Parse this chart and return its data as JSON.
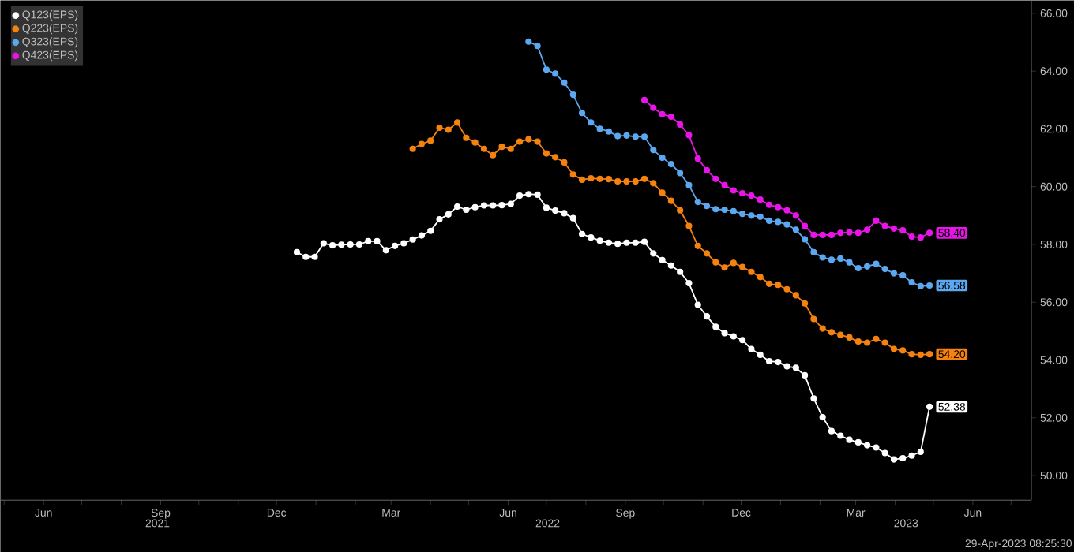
{
  "chart_data": {
    "type": "line",
    "marker": "circle",
    "legend": "top left",
    "x": [
      "2021-12-17",
      "2021-12-24",
      "2021-12-31",
      "2022-01-07",
      "2022-01-14",
      "2022-01-21",
      "2022-01-28",
      "2022-02-04",
      "2022-02-11",
      "2022-02-18",
      "2022-02-25",
      "2022-03-04",
      "2022-03-11",
      "2022-03-18",
      "2022-03-25",
      "2022-04-01",
      "2022-04-08",
      "2022-04-15",
      "2022-04-22",
      "2022-04-29",
      "2022-05-06",
      "2022-05-13",
      "2022-05-20",
      "2022-05-27",
      "2022-06-03",
      "2022-06-10",
      "2022-06-17",
      "2022-06-24",
      "2022-07-01",
      "2022-07-08",
      "2022-07-15",
      "2022-07-22",
      "2022-07-29",
      "2022-08-05",
      "2022-08-12",
      "2022-08-19",
      "2022-08-26",
      "2022-09-02",
      "2022-09-09",
      "2022-09-16",
      "2022-09-23",
      "2022-09-30",
      "2022-10-07",
      "2022-10-14",
      "2022-10-21",
      "2022-10-28",
      "2022-11-04",
      "2022-11-11",
      "2022-11-18",
      "2022-11-25",
      "2022-12-02",
      "2022-12-09",
      "2022-12-16",
      "2022-12-23",
      "2022-12-30",
      "2023-01-06",
      "2023-01-13",
      "2023-01-20",
      "2023-01-27",
      "2023-02-03",
      "2023-02-10",
      "2023-02-17",
      "2023-02-24",
      "2023-03-03",
      "2023-03-10",
      "2023-03-17",
      "2023-03-24",
      "2023-03-31",
      "2023-04-07",
      "2023-04-14",
      "2023-04-21",
      "2023-04-28"
    ],
    "series": [
      {
        "name": "Q123(EPS)",
        "color": "#ffffff",
        "values": [
          57.73,
          57.57,
          57.57,
          58.04,
          57.97,
          57.99,
          58.0,
          58.0,
          58.11,
          58.11,
          57.8,
          57.95,
          58.04,
          58.17,
          58.31,
          58.47,
          58.87,
          59.04,
          59.31,
          59.2,
          59.29,
          59.35,
          59.35,
          59.36,
          59.4,
          59.69,
          59.74,
          59.72,
          59.27,
          59.17,
          59.08,
          58.91,
          58.36,
          58.24,
          58.13,
          58.06,
          58.02,
          58.06,
          58.06,
          58.09,
          57.69,
          57.46,
          57.27,
          57.05,
          56.66,
          55.91,
          55.51,
          55.15,
          54.93,
          54.82,
          54.69,
          54.38,
          54.18,
          53.96,
          53.93,
          53.78,
          53.73,
          53.47,
          52.67,
          52.02,
          51.54,
          51.38,
          51.24,
          51.15,
          51.05,
          50.97,
          50.78,
          50.56,
          50.6,
          50.69,
          50.82,
          52.38
        ],
        "value_labels": [
          null,
          null,
          null,
          null,
          null,
          null,
          null,
          null,
          null,
          null,
          null,
          null,
          null,
          null,
          null,
          null,
          null,
          null,
          null,
          null,
          null,
          null,
          null,
          null,
          null,
          null,
          null,
          null,
          null,
          null,
          null,
          null,
          null,
          null,
          null,
          null,
          null,
          null,
          null,
          null,
          null,
          null,
          null,
          null,
          null,
          null,
          null,
          null,
          null,
          null,
          null,
          null,
          null,
          null,
          null,
          null,
          null,
          null,
          null,
          null,
          null,
          null,
          null,
          null,
          null,
          null,
          null,
          null,
          null,
          null,
          null,
          "52.38"
        ]
      },
      {
        "name": "Q223(EPS)",
        "color": "#f5820f",
        "values": [
          null,
          null,
          null,
          null,
          null,
          null,
          null,
          null,
          null,
          null,
          null,
          null,
          null,
          61.31,
          61.48,
          61.59,
          62.04,
          61.97,
          62.22,
          61.69,
          61.53,
          61.31,
          61.09,
          61.38,
          61.31,
          61.56,
          61.64,
          61.56,
          61.15,
          61.02,
          60.84,
          60.42,
          60.24,
          60.29,
          60.27,
          60.26,
          60.18,
          60.18,
          60.18,
          60.27,
          60.12,
          59.79,
          59.51,
          59.18,
          58.64,
          57.95,
          57.69,
          57.38,
          57.2,
          57.36,
          57.22,
          57.05,
          56.87,
          56.64,
          56.6,
          56.45,
          56.24,
          55.96,
          55.42,
          55.09,
          54.96,
          54.87,
          54.78,
          54.64,
          54.6,
          54.73,
          54.6,
          54.38,
          54.33,
          54.2,
          54.18,
          54.2
        ],
        "value_labels": [
          null,
          null,
          null,
          null,
          null,
          null,
          null,
          null,
          null,
          null,
          null,
          null,
          null,
          null,
          null,
          null,
          null,
          null,
          null,
          null,
          null,
          null,
          null,
          null,
          null,
          null,
          null,
          null,
          null,
          null,
          null,
          null,
          null,
          null,
          null,
          null,
          null,
          null,
          null,
          null,
          null,
          null,
          null,
          null,
          null,
          null,
          null,
          null,
          null,
          null,
          null,
          null,
          null,
          null,
          null,
          null,
          null,
          null,
          null,
          null,
          null,
          null,
          null,
          null,
          null,
          null,
          null,
          null,
          null,
          null,
          null,
          "54.20"
        ]
      },
      {
        "name": "Q323(EPS)",
        "color": "#5ba8f0",
        "values": [
          null,
          null,
          null,
          null,
          null,
          null,
          null,
          null,
          null,
          null,
          null,
          null,
          null,
          null,
          null,
          null,
          null,
          null,
          null,
          null,
          null,
          null,
          null,
          null,
          null,
          null,
          65.02,
          64.87,
          64.05,
          63.91,
          63.6,
          63.18,
          62.55,
          62.22,
          62.0,
          61.91,
          61.75,
          61.77,
          61.73,
          61.73,
          61.27,
          61.0,
          60.78,
          60.47,
          60.05,
          59.47,
          59.33,
          59.22,
          59.2,
          59.15,
          59.06,
          59.0,
          58.96,
          58.82,
          58.78,
          58.69,
          58.51,
          58.18,
          57.73,
          57.55,
          57.47,
          57.51,
          57.38,
          57.18,
          57.24,
          57.33,
          57.15,
          57.0,
          56.93,
          56.69,
          56.56,
          56.58
        ],
        "value_labels": [
          null,
          null,
          null,
          null,
          null,
          null,
          null,
          null,
          null,
          null,
          null,
          null,
          null,
          null,
          null,
          null,
          null,
          null,
          null,
          null,
          null,
          null,
          null,
          null,
          null,
          null,
          null,
          null,
          null,
          null,
          null,
          null,
          null,
          null,
          null,
          null,
          null,
          null,
          null,
          null,
          null,
          null,
          null,
          null,
          null,
          null,
          null,
          null,
          null,
          null,
          null,
          null,
          null,
          null,
          null,
          null,
          null,
          null,
          null,
          null,
          null,
          null,
          null,
          null,
          null,
          null,
          null,
          null,
          null,
          null,
          null,
          "56.58"
        ]
      },
      {
        "name": "Q423(EPS)",
        "color": "#e815e8",
        "values": [
          null,
          null,
          null,
          null,
          null,
          null,
          null,
          null,
          null,
          null,
          null,
          null,
          null,
          null,
          null,
          null,
          null,
          null,
          null,
          null,
          null,
          null,
          null,
          null,
          null,
          null,
          null,
          null,
          null,
          null,
          null,
          null,
          null,
          null,
          null,
          null,
          null,
          null,
          null,
          63.0,
          62.73,
          62.51,
          62.42,
          62.15,
          61.78,
          60.97,
          60.57,
          60.27,
          60.05,
          59.87,
          59.77,
          59.69,
          59.55,
          59.37,
          59.29,
          59.18,
          59.0,
          58.64,
          58.33,
          58.33,
          58.33,
          58.4,
          58.42,
          58.4,
          58.51,
          58.82,
          58.64,
          58.55,
          58.49,
          58.27,
          58.24,
          58.4
        ],
        "value_labels": [
          null,
          null,
          null,
          null,
          null,
          null,
          null,
          null,
          null,
          null,
          null,
          null,
          null,
          null,
          null,
          null,
          null,
          null,
          null,
          null,
          null,
          null,
          null,
          null,
          null,
          null,
          null,
          null,
          null,
          null,
          null,
          null,
          null,
          null,
          null,
          null,
          null,
          null,
          null,
          null,
          null,
          null,
          null,
          null,
          null,
          null,
          null,
          null,
          null,
          null,
          null,
          null,
          null,
          null,
          null,
          null,
          null,
          null,
          null,
          null,
          null,
          null,
          null,
          null,
          null,
          null,
          null,
          null,
          null,
          null,
          null,
          "58.40"
        ]
      }
    ],
    "xlim": [
      "2021-04-28",
      "2023-07-17"
    ],
    "xticks": [
      {
        "value": "2021-05-01",
        "label": null
      },
      {
        "value": "2021-06-01",
        "label": "Jun"
      },
      {
        "value": "2021-07-01",
        "label": null
      },
      {
        "value": "2021-08-01",
        "label": null
      },
      {
        "value": "2021-09-01",
        "label": "Sep"
      },
      {
        "value": "2021-10-01",
        "label": null
      },
      {
        "value": "2021-11-01",
        "label": null
      },
      {
        "value": "2021-12-01",
        "label": "Dec"
      },
      {
        "value": "2022-01-01",
        "label": null
      },
      {
        "value": "2022-02-01",
        "label": null
      },
      {
        "value": "2022-03-01",
        "label": "Mar"
      },
      {
        "value": "2022-04-01",
        "label": null
      },
      {
        "value": "2022-05-01",
        "label": null
      },
      {
        "value": "2022-06-01",
        "label": "Jun"
      },
      {
        "value": "2022-07-01",
        "label": null
      },
      {
        "value": "2022-08-01",
        "label": null
      },
      {
        "value": "2022-09-01",
        "label": "Sep"
      },
      {
        "value": "2022-10-01",
        "label": null
      },
      {
        "value": "2022-11-01",
        "label": null
      },
      {
        "value": "2022-12-01",
        "label": "Dec"
      },
      {
        "value": "2023-01-01",
        "label": null
      },
      {
        "value": "2023-02-01",
        "label": null
      },
      {
        "value": "2023-03-01",
        "label": "Mar"
      },
      {
        "value": "2023-04-01",
        "label": null
      },
      {
        "value": "2023-05-01",
        "label": null
      },
      {
        "value": "2023-06-01",
        "label": "Jun"
      },
      {
        "value": "2023-07-01",
        "label": null
      }
    ],
    "ylim": [
      49.15,
      66.45
    ],
    "yticks": [
      {
        "value": 50,
        "label": "50.00"
      },
      {
        "value": 52,
        "label": "52.00"
      },
      {
        "value": 54,
        "label": "54.00"
      },
      {
        "value": 56,
        "label": "56.00"
      },
      {
        "value": 58,
        "label": "58.00"
      },
      {
        "value": 60,
        "label": "60.00"
      },
      {
        "value": 62,
        "label": "62.00"
      },
      {
        "value": 64,
        "label": "64.00"
      },
      {
        "value": 66,
        "label": "66.00"
      }
    ],
    "annotations": [
      "2021",
      "2022",
      "2023",
      "29-Apr-2023 08:25:30"
    ]
  }
}
